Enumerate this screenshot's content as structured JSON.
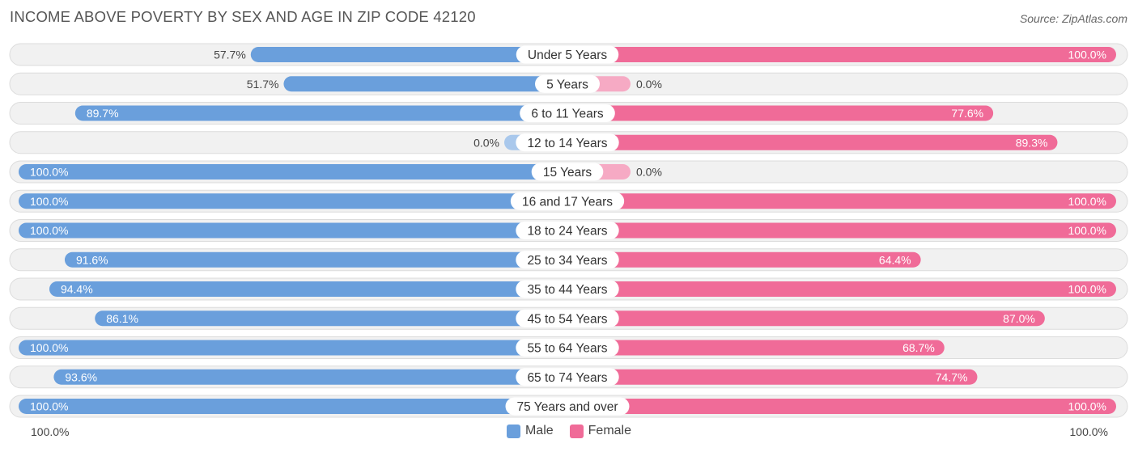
{
  "header": {
    "title": "INCOME ABOVE POVERTY BY SEX AND AGE IN ZIP CODE 42120",
    "source": "Source: ZipAtlas.com"
  },
  "axis": {
    "left_label": "100.0%",
    "right_label": "100.0%"
  },
  "legend": {
    "male_label": "Male",
    "female_label": "Female"
  },
  "colors": {
    "male": "#6a9fdc",
    "male_light": "#a9c8ec",
    "female": "#f06b98",
    "female_light": "#f6aac4"
  },
  "chart_data": {
    "type": "bar",
    "orientation": "horizontal-diverging",
    "title": "INCOME ABOVE POVERTY BY SEX AND AGE IN ZIP CODE 42120",
    "xlim": [
      0,
      100
    ],
    "unit": "%",
    "categories": [
      "Under 5 Years",
      "5 Years",
      "6 to 11 Years",
      "12 to 14 Years",
      "15 Years",
      "16 and 17 Years",
      "18 to 24 Years",
      "25 to 34 Years",
      "35 to 44 Years",
      "45 to 54 Years",
      "55 to 64 Years",
      "65 to 74 Years",
      "75 Years and over"
    ],
    "series": [
      {
        "name": "Male",
        "values": [
          57.7,
          51.7,
          89.7,
          0.0,
          100.0,
          100.0,
          100.0,
          91.6,
          94.4,
          86.1,
          100.0,
          93.6,
          100.0
        ],
        "labels": [
          "57.7%",
          "51.7%",
          "89.7%",
          "0.0%",
          "100.0%",
          "100.0%",
          "100.0%",
          "91.6%",
          "94.4%",
          "86.1%",
          "100.0%",
          "93.6%",
          "100.0%"
        ]
      },
      {
        "name": "Female",
        "values": [
          100.0,
          0.0,
          77.6,
          89.3,
          0.0,
          100.0,
          100.0,
          64.4,
          100.0,
          87.0,
          68.7,
          74.7,
          100.0
        ],
        "labels": [
          "100.0%",
          "0.0%",
          "77.6%",
          "89.3%",
          "0.0%",
          "100.0%",
          "100.0%",
          "64.4%",
          "100.0%",
          "87.0%",
          "68.7%",
          "74.7%",
          "100.0%"
        ]
      }
    ]
  }
}
